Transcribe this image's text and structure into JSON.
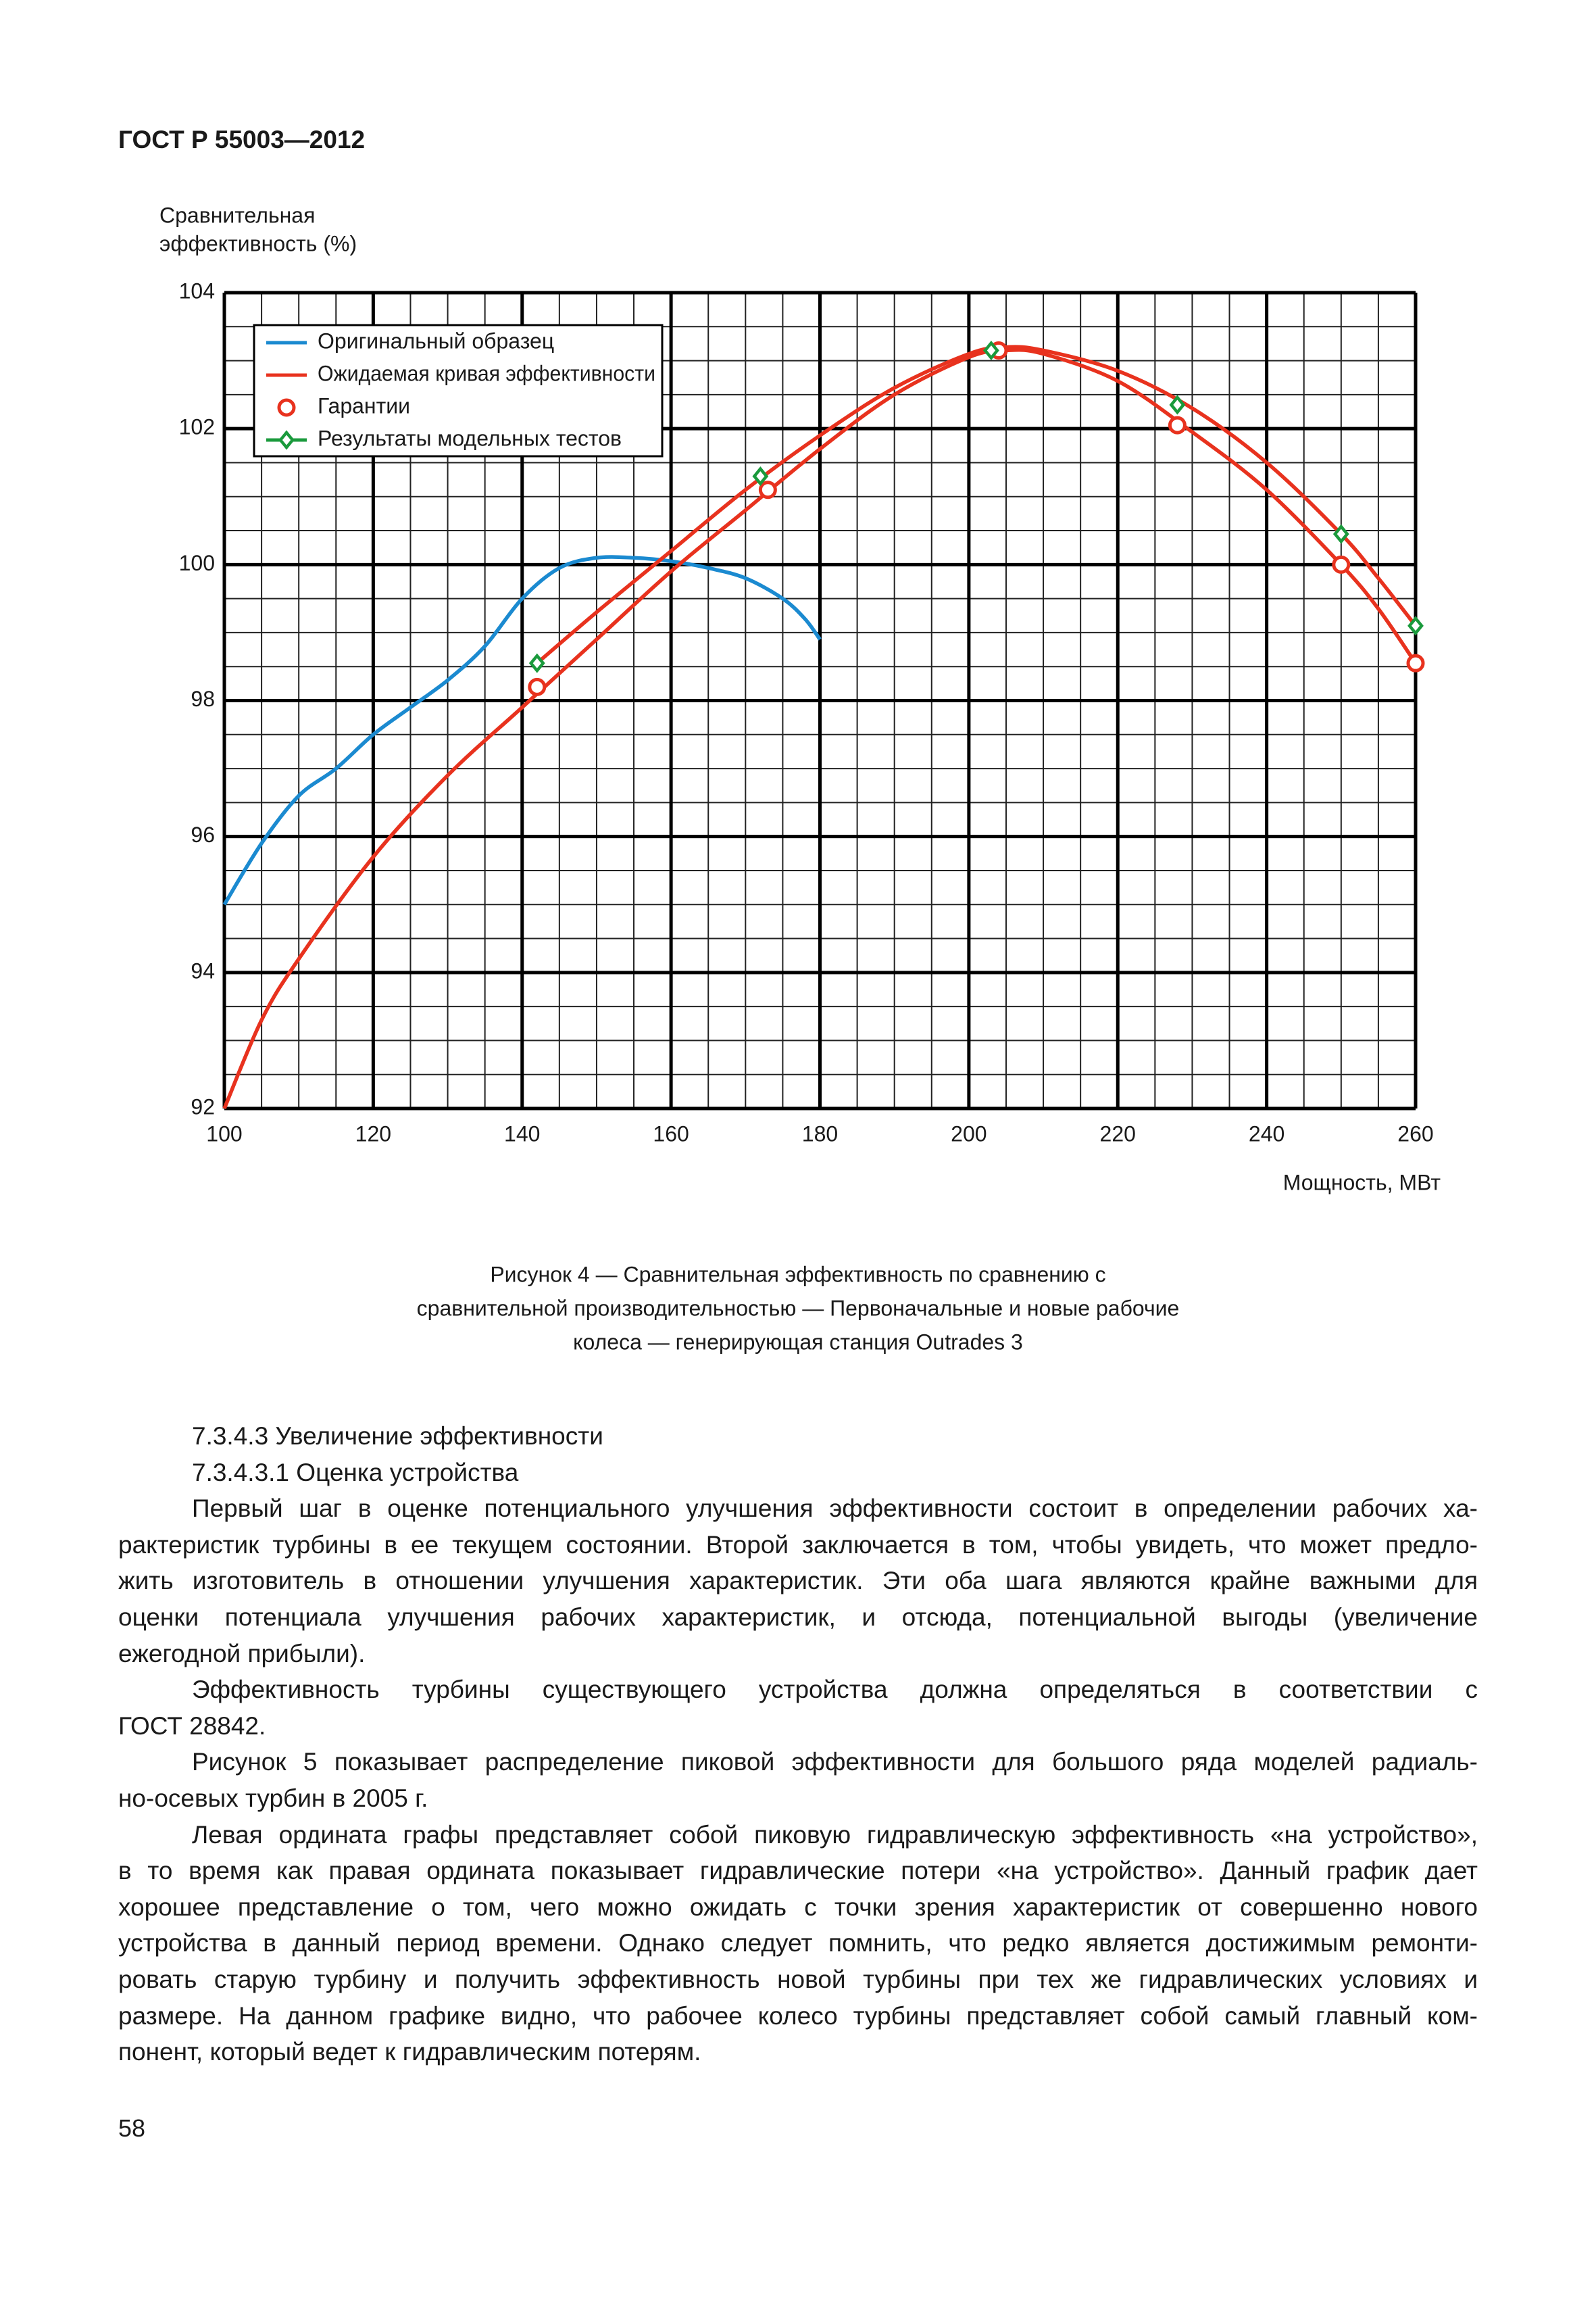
{
  "header": {
    "title": "ГОСТ Р 55003—2012"
  },
  "chart_data": {
    "type": "line",
    "ylabel": [
      "Сравнительная",
      "эффективность (%)"
    ],
    "xlabel": "Мощность, МВт",
    "xlim": [
      100,
      260
    ],
    "ylim": [
      92,
      104
    ],
    "xticks": [
      100,
      120,
      140,
      160,
      180,
      200,
      220,
      240,
      260
    ],
    "yticks": [
      92,
      94,
      96,
      98,
      100,
      102,
      104
    ],
    "grid": true,
    "minor_grid": true,
    "legend": "upper left",
    "series": [
      {
        "name": "Оригинальный образец",
        "color": "#1b8ad0",
        "line": true,
        "marker": null,
        "x": [
          100,
          105,
          110,
          115,
          120,
          125,
          130,
          135,
          140,
          145,
          150,
          155,
          160,
          165,
          170,
          175,
          178,
          180
        ],
        "values": [
          95.0,
          95.9,
          96.6,
          97.0,
          97.5,
          97.9,
          98.3,
          98.8,
          99.5,
          99.95,
          100.1,
          100.1,
          100.05,
          99.95,
          99.8,
          99.5,
          99.2,
          98.9
        ]
      },
      {
        "name": "Ожидаемая кривая эффективности",
        "color": "#e8321e",
        "line": true,
        "marker": null,
        "x": [
          100,
          105,
          110,
          120,
          130,
          140,
          150,
          160,
          170,
          180,
          190,
          200,
          205,
          210,
          220,
          230,
          240,
          250,
          255,
          260
        ],
        "values": [
          92.0,
          93.3,
          94.2,
          95.7,
          96.9,
          97.9,
          98.9,
          99.9,
          100.8,
          101.7,
          102.5,
          103.05,
          103.15,
          103.1,
          102.7,
          101.95,
          101.1,
          100.0,
          99.35,
          98.55
        ]
      },
      {
        "name": "Ожидаемая кривая эффективности",
        "color": "#e8321e",
        "line": true,
        "marker": null,
        "x": [
          142,
          150,
          160,
          170,
          180,
          190,
          200,
          205,
          210,
          220,
          230,
          240,
          250,
          255,
          260
        ],
        "values": [
          98.55,
          99.3,
          100.2,
          101.1,
          101.9,
          102.6,
          103.1,
          103.2,
          103.15,
          102.85,
          102.3,
          101.5,
          100.45,
          99.8,
          99.1
        ]
      },
      {
        "name": "Гарантии",
        "color": "#e8321e",
        "line": false,
        "marker": "circle",
        "x": [
          142,
          173,
          204,
          228,
          250,
          260
        ],
        "values": [
          98.2,
          101.1,
          103.15,
          102.05,
          100.0,
          98.55
        ]
      },
      {
        "name": "Результаты модельных тестов",
        "color": "#1a9a3c",
        "line": false,
        "marker": "diamond",
        "x": [
          142,
          172,
          203,
          228,
          250,
          260
        ],
        "values": [
          98.55,
          101.3,
          103.15,
          102.35,
          100.45,
          99.1
        ]
      }
    ]
  },
  "caption": [
    "Рисунок 4 — Сравнительная эффективность по сравнению с",
    "сравнительной производительностью — Первоначальные и новые рабочие",
    "колеса — генерирующая станция Outrades 3"
  ],
  "paragraphs": [
    [
      "7.3.4.3 Увеличение эффективности"
    ],
    [
      "7.3.4.3.1 Оценка устройства"
    ],
    [
      "Первый шаг в оценке потенциального улучшения эффективности состоит в определении рабочих ха-",
      "рактеристик турбины в ее текущем состоянии. Второй заключается в том, чтобы увидеть, что может предло-",
      "жить изготовитель в отношении улучшения характеристик. Эти оба шага являются крайне важными для",
      "оценки потенциала улучшения рабочих характеристик, и отсюда, потенциальной выгоды (увеличение",
      "ежегодной прибыли)."
    ],
    [
      "Эффективность турбины существующего устройства должна определяться в соответствии с",
      "ГОСТ 28842."
    ],
    [
      "Рисунок 5 показывает распределение пиковой эффективности для большого ряда моделей радиаль-",
      "но-осевых турбин в 2005 г."
    ],
    [
      "Левая ордината графы представляет собой пиковую гидравлическую эффективность «на устройство»,",
      "в то время как правая ордината показывает гидравлические потери «на устройство». Данный график дает",
      "хорошее представление о том, чего можно ожидать с точки зрения характеристик от совершенно нового",
      "устройства в данный период времени. Однако следует помнить, что редко является достижимым ремонти-",
      "ровать старую турбину и получить эффективность новой турбины при тех же гидравлических условиях и",
      "размере. На данном графике видно, что рабочее колесо турбины представляет собой самый главный ком-",
      "понент, который ведет к гидравлическим потерям."
    ]
  ],
  "page_number": "58"
}
